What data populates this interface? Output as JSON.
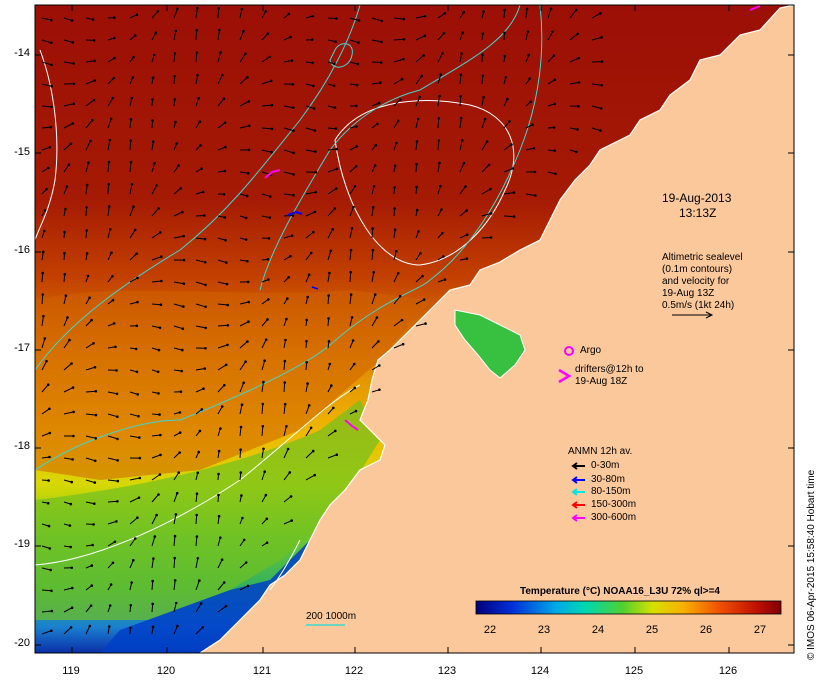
{
  "title": {
    "date": "19-Aug-2013",
    "time": "13:13Z"
  },
  "altimetry_note": [
    "Altimetric sealevel",
    "(0.1m contours)",
    "and velocity for",
    "19-Aug 13Z",
    "0.5m/s (1kt 24h)"
  ],
  "argo": {
    "label": "Argo"
  },
  "drifters": {
    "label_line1": "drifters@12h to",
    "label_line2": "19-Aug 18Z"
  },
  "anmn_legend": {
    "title": "ANMN 12h av.",
    "items": [
      {
        "label": "0-30m",
        "color": "#000000"
      },
      {
        "label": "30-80m",
        "color": "#0000ff"
      },
      {
        "label": "80-150m",
        "color": "#00e5e5"
      },
      {
        "label": "150-300m",
        "color": "#ff0000"
      },
      {
        "label": "300-600m",
        "color": "#ff00ff"
      }
    ]
  },
  "isobath_legend": {
    "text": "200  1000m"
  },
  "colorbar": {
    "title": "Temperature (°C) NOAA16_L3U 72% ql>=4",
    "ticks": [
      "22",
      "23",
      "24",
      "25",
      "26",
      "27"
    ],
    "min": 21.7,
    "max": 27.4
  },
  "axes": {
    "lat_ticks": [
      "-14",
      "-15",
      "-16",
      "-17",
      "-18",
      "-19",
      "-20"
    ],
    "lon_ticks": [
      "119",
      "120",
      "121",
      "122",
      "123",
      "124",
      "125",
      "126"
    ]
  },
  "credit": "© IMOS 06-Apr-2015 15:58:40 Hobart time",
  "colors": {
    "land": "#fbc89b",
    "warm": "#9b0f06",
    "cool": "#0a2fa8",
    "contour": "#ffffff",
    "isobath": "#3fd7d0"
  }
}
